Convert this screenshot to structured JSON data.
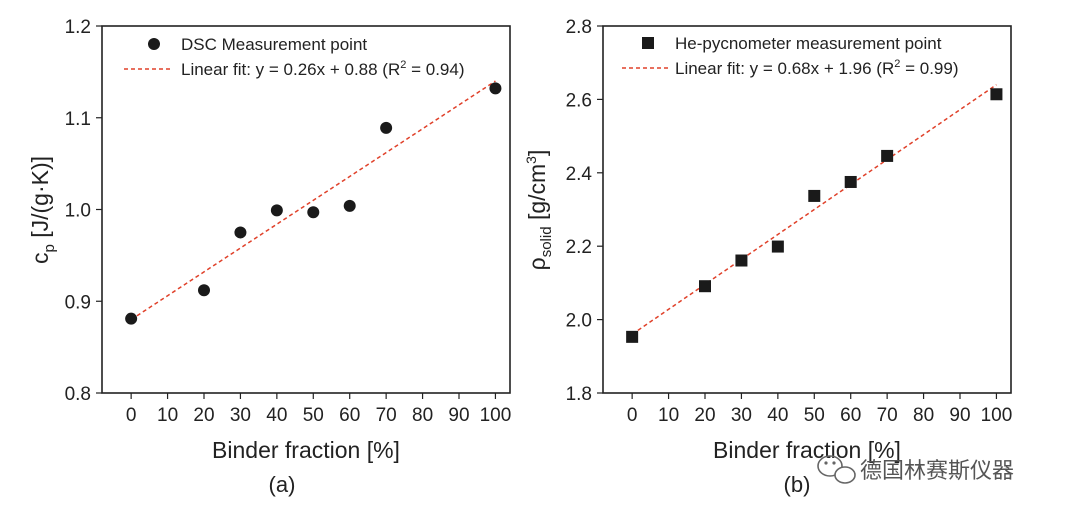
{
  "chart_data": [
    {
      "type": "scatter",
      "panel_label": "(a)",
      "xlabel": "Binder fraction [%]",
      "ylabel_base": "c",
      "ylabel_sub": "p",
      "ylabel_rest": " [J/(g·K)]",
      "xlim": [
        -8,
        104
      ],
      "ylim": [
        0.8,
        1.2
      ],
      "xticks": [
        0,
        10,
        20,
        30,
        40,
        50,
        60,
        70,
        80,
        90,
        100
      ],
      "yticks": [
        0.8,
        0.9,
        1.0,
        1.1,
        1.2
      ],
      "ytick_labels": [
        "0.8",
        "0.9",
        "1.0",
        "1.1",
        "1.2"
      ],
      "marker": "circle",
      "series": [
        {
          "name": "DSC Measurement point",
          "x": [
            0,
            20,
            30,
            40,
            50,
            60,
            70,
            100
          ],
          "y": [
            0.881,
            0.912,
            0.975,
            0.999,
            0.997,
            1.004,
            1.089,
            1.132
          ]
        }
      ],
      "fit": {
        "slope": 0.26,
        "intercept": 0.88,
        "x_range": [
          0,
          100
        ]
      },
      "legend": {
        "point_label": "DSC Measurement point",
        "fit_label_pre": "Linear fit: y = 0.26x + 0.88 (R",
        "fit_label_sup": "2",
        "fit_label_post": " = 0.94)",
        "placement": "top-left"
      }
    },
    {
      "type": "scatter",
      "panel_label": "(b)",
      "xlabel": "Binder fraction [%]",
      "ylabel_base": "ρ",
      "ylabel_sub": "solid",
      "ylabel_rest": " [g/cm",
      "ylabel_sup": "3",
      "ylabel_end": "]",
      "xlim": [
        -8,
        104
      ],
      "ylim": [
        1.8,
        2.8
      ],
      "xticks": [
        0,
        10,
        20,
        30,
        40,
        50,
        60,
        70,
        80,
        90,
        100
      ],
      "yticks": [
        1.8,
        2.0,
        2.2,
        2.4,
        2.6,
        2.8
      ],
      "ytick_labels": [
        "1.8",
        "2.0",
        "2.2",
        "2.4",
        "2.6",
        "2.8"
      ],
      "marker": "square",
      "series": [
        {
          "name": "He-pycnometer measurement point",
          "x": [
            0,
            20,
            30,
            40,
            50,
            60,
            70,
            100
          ],
          "y": [
            1.953,
            2.091,
            2.161,
            2.199,
            2.337,
            2.375,
            2.446,
            2.614
          ]
        }
      ],
      "fit": {
        "slope": 0.68,
        "intercept": 1.96,
        "x_range": [
          0,
          100
        ]
      },
      "legend": {
        "point_label": "He-pycnometer measurement point",
        "fit_label_pre": "Linear fit: y = 0.68x + 1.96 (R",
        "fit_label_sup": "2",
        "fit_label_post": " = 0.99)",
        "placement": "top-left"
      }
    }
  ],
  "watermark": {
    "text": "德国林赛斯仪器",
    "icon": "wechat-icon"
  },
  "colors": {
    "axis": "#222222",
    "marker": "#1a1a1a",
    "fit_line": "#e0412a"
  }
}
